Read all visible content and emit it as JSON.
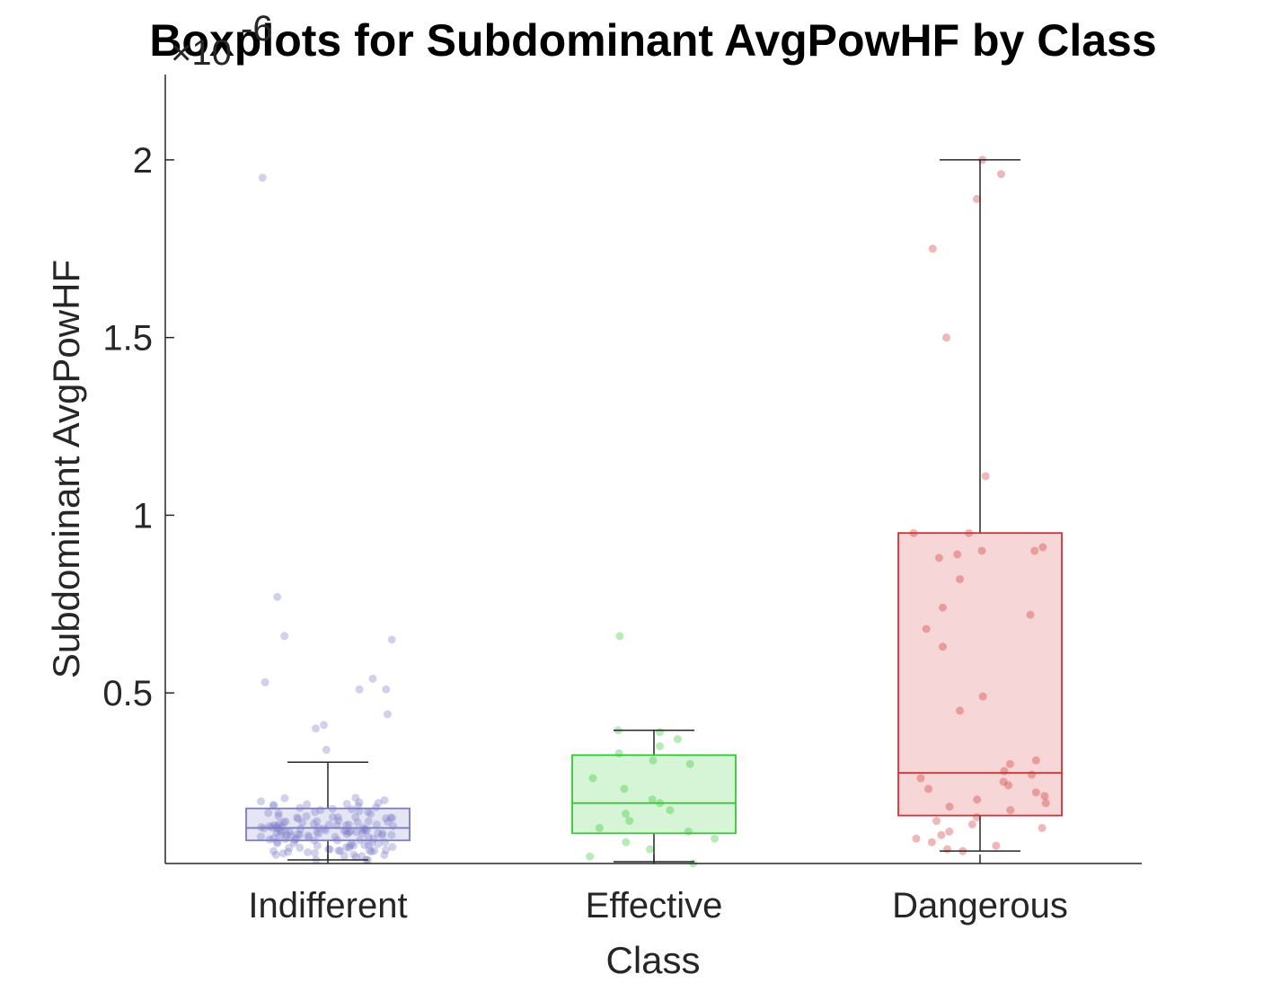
{
  "chart_data": {
    "type": "boxplot",
    "title": "Boxplots for Subdominant AvgPowHF by Class",
    "xlabel": "Class",
    "ylabel": "Subdominant AvgPowHF",
    "y_exponent_label": "×10",
    "y_exponent_power": "-6",
    "ylim": [
      0.02,
      2.24
    ],
    "yticks": [
      0.5,
      1,
      1.5,
      2
    ],
    "ytick_labels": [
      "0.5",
      "1",
      "1.5",
      "2"
    ],
    "categories": [
      "Indifferent",
      "Effective",
      "Dangerous"
    ],
    "series": [
      {
        "category": "Indifferent",
        "color": "#7b7bc8",
        "box": {
          "lower_whisker": 0.03,
          "q1": 0.085,
          "median": 0.12,
          "q3": 0.175,
          "upper_whisker": 0.305
        },
        "outliers": [
          0.34,
          0.4,
          0.41,
          0.44,
          0.51,
          0.51,
          0.53,
          0.54,
          0.65,
          0.66,
          0.77,
          1.95
        ],
        "jitter_count": 140
      },
      {
        "category": "Effective",
        "color": "#32c832",
        "box": {
          "lower_whisker": 0.025,
          "q1": 0.105,
          "median": 0.19,
          "q3": 0.325,
          "upper_whisker": 0.395
        },
        "outliers": [
          0.66
        ],
        "points": [
          0.02,
          0.04,
          0.06,
          0.08,
          0.09,
          0.11,
          0.12,
          0.14,
          0.16,
          0.17,
          0.19,
          0.2,
          0.23,
          0.26,
          0.3,
          0.31,
          0.33,
          0.35,
          0.37,
          0.39,
          0.395
        ]
      },
      {
        "category": "Dangerous",
        "color": "#d23232",
        "box": {
          "lower_whisker": 0.055,
          "q1": 0.155,
          "median": 0.275,
          "q3": 0.95,
          "upper_whisker": 2.0
        },
        "outliers": [],
        "points": [
          0.055,
          0.06,
          0.07,
          0.08,
          0.09,
          0.1,
          0.11,
          0.12,
          0.13,
          0.14,
          0.15,
          0.17,
          0.18,
          0.19,
          0.2,
          0.21,
          0.22,
          0.23,
          0.24,
          0.25,
          0.26,
          0.27,
          0.28,
          0.3,
          0.31,
          0.45,
          0.49,
          0.63,
          0.68,
          0.72,
          0.74,
          0.82,
          0.88,
          0.89,
          0.9,
          0.9,
          0.91,
          0.95,
          0.95,
          1.11,
          1.5,
          1.75,
          1.89,
          1.96,
          2.0
        ]
      }
    ],
    "grid": false,
    "legend": "none"
  }
}
